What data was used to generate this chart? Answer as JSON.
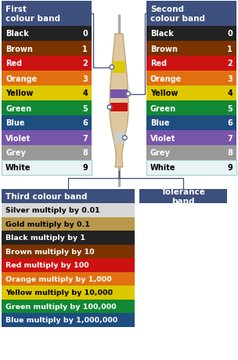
{
  "bg_color": "#ffffff",
  "header_color": "#3d4f7c",
  "color_bands": [
    {
      "name": "Black",
      "value": "0",
      "color": "#222222",
      "text_color": "#ffffff",
      "border": false
    },
    {
      "name": "Brown",
      "value": "1",
      "color": "#7b3300",
      "text_color": "#ffffff",
      "border": false
    },
    {
      "name": "Red",
      "value": "2",
      "color": "#cc1111",
      "text_color": "#ffffff",
      "border": false
    },
    {
      "name": "Orange",
      "value": "3",
      "color": "#e07010",
      "text_color": "#ffffff",
      "border": false
    },
    {
      "name": "Yellow",
      "value": "4",
      "color": "#ddc800",
      "text_color": "#000000",
      "border": false
    },
    {
      "name": "Green",
      "value": "5",
      "color": "#118833",
      "text_color": "#ffffff",
      "border": false
    },
    {
      "name": "Blue",
      "value": "6",
      "color": "#1e4d80",
      "text_color": "#ffffff",
      "border": false
    },
    {
      "name": "Violet",
      "value": "7",
      "color": "#7755aa",
      "text_color": "#ffffff",
      "border": false
    },
    {
      "name": "Grey",
      "value": "8",
      "color": "#999999",
      "text_color": "#ffffff",
      "border": false
    },
    {
      "name": "White",
      "value": "9",
      "color": "#e8f4f4",
      "text_color": "#000000",
      "border": true
    }
  ],
  "third_band": [
    {
      "name": "Silver multiply by 0.01",
      "color": "#d8d8d8",
      "text_color": "#000000"
    },
    {
      "name": "Gold multiply by 0.1",
      "color": "#b8984a",
      "text_color": "#000000"
    },
    {
      "name": "Black multiply by 1",
      "color": "#222222",
      "text_color": "#ffffff"
    },
    {
      "name": "Brown multiply by 10",
      "color": "#7b3300",
      "text_color": "#ffffff"
    },
    {
      "name": "Red multiply by 100",
      "color": "#cc1111",
      "text_color": "#ffffff"
    },
    {
      "name": "Orange multiply by 1,000",
      "color": "#e07010",
      "text_color": "#ffffff"
    },
    {
      "name": "Yellow multiply by 10,000",
      "color": "#ddc800",
      "text_color": "#000000"
    },
    {
      "name": "Green multiply by 100,000",
      "color": "#118833",
      "text_color": "#ffffff"
    },
    {
      "name": "Blue multiply by 1,000,000",
      "color": "#1e4d80",
      "text_color": "#ffffff"
    }
  ],
  "first_title": "First\ncolour band",
  "second_title": "Second\ncolour band",
  "third_title": "Third colour band",
  "tolerance_title": "Tolerance\nband",
  "resistor_body_color": "#dfc8a0",
  "resistor_edge_color": "#c0a878",
  "resistor_stripe_colors": [
    "#ddc800",
    "#7755aa",
    "#cc1111",
    "#cccccc"
  ],
  "wire_color": "#aaaaaa",
  "line_color": "#3d4f7c"
}
